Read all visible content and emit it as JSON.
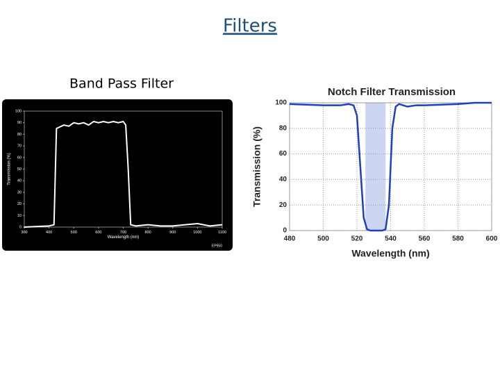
{
  "slide": {
    "title": "Filters"
  },
  "chart_data": [
    {
      "type": "line",
      "title": "Band Pass Filter",
      "xlabel": "Wavelength (nm)",
      "ylabel": "Transmission (%)",
      "annotation": "EP550",
      "background": "#000000",
      "color": "#ffffff",
      "grid": false,
      "x": [
        300,
        400,
        420,
        430,
        440,
        460,
        480,
        500,
        520,
        540,
        560,
        580,
        600,
        620,
        640,
        660,
        680,
        700,
        710,
        720,
        730,
        750,
        800,
        850,
        900,
        950,
        1000,
        1050,
        1100
      ],
      "values": [
        0,
        1,
        2,
        85,
        86,
        88,
        87,
        90,
        89,
        90,
        88,
        91,
        90,
        91,
        90,
        91,
        90,
        91,
        88,
        50,
        2,
        1,
        2,
        1,
        1,
        2,
        3,
        1,
        2
      ],
      "xlim": [
        300,
        1100
      ],
      "xticks": [
        300,
        400,
        500,
        600,
        700,
        800,
        900,
        1000,
        1100
      ],
      "ylim": [
        0,
        100
      ],
      "yticks": [
        0,
        10,
        20,
        30,
        40,
        50,
        60,
        70,
        80,
        90,
        100
      ]
    },
    {
      "type": "line",
      "title": "Notch Filter Transmission",
      "xlabel": "Wavelength (nm)",
      "ylabel": "Transmission (%)",
      "background": "#ffffff",
      "color": "#1f3fbf",
      "band": [
        525,
        537
      ],
      "band_color": "#cdd6f0",
      "grid": true,
      "x": [
        480,
        500,
        510,
        515,
        518,
        520,
        522,
        524,
        526,
        528,
        530,
        535,
        537,
        539,
        541,
        543,
        545,
        550,
        555,
        560,
        580,
        590,
        600
      ],
      "values": [
        99,
        98,
        98,
        99,
        98,
        90,
        50,
        10,
        1,
        0,
        0,
        0,
        1,
        20,
        80,
        97,
        99,
        97,
        98,
        98,
        99,
        100,
        100
      ],
      "xlim": [
        480,
        600
      ],
      "xticks": [
        480,
        500,
        520,
        540,
        560,
        580,
        600
      ],
      "ylim": [
        0,
        100
      ],
      "yticks": [
        0,
        20,
        40,
        60,
        80,
        100
      ]
    }
  ]
}
